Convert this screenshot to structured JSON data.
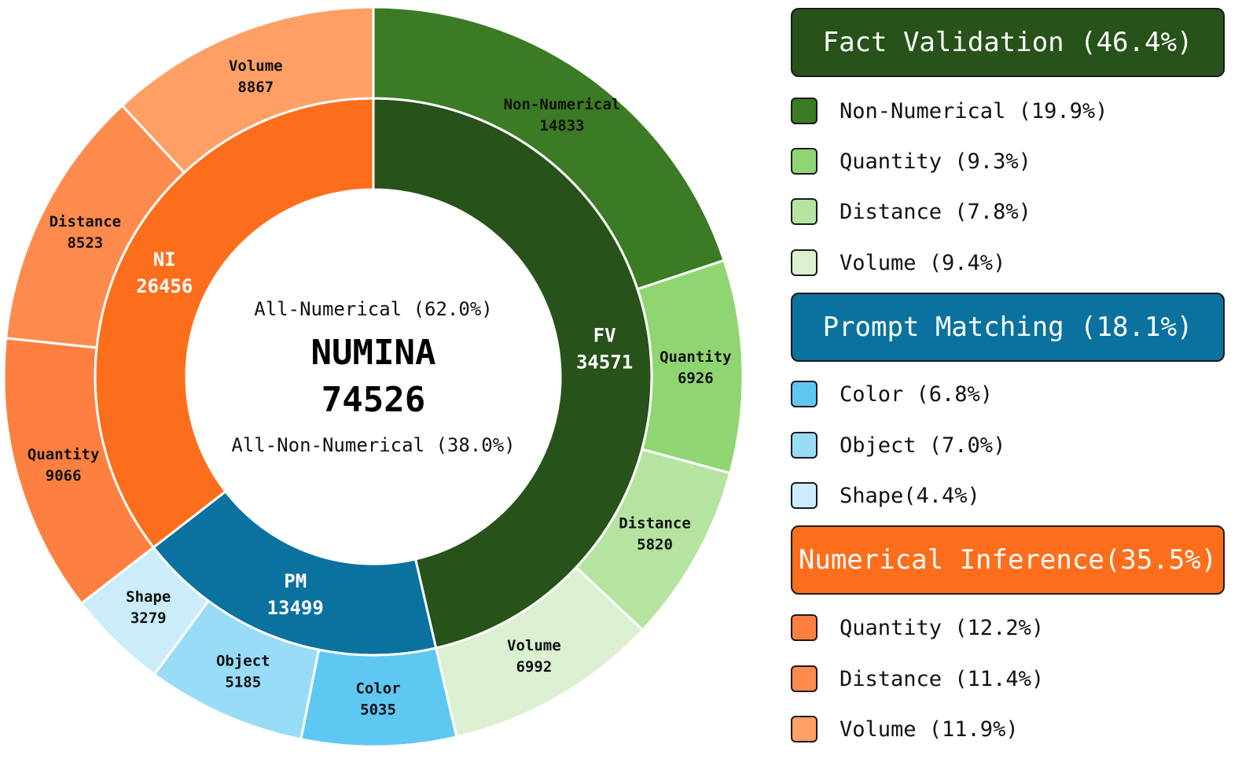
{
  "chart_data": {
    "type": "pie",
    "variant": "nested-donut",
    "title": "NUMINA",
    "total": "74526",
    "center_lines": [
      "All-Numerical (62.0%)",
      "All-Non-Numerical (38.0%)"
    ],
    "inner_ring": [
      {
        "label": "FV",
        "value": 34571,
        "color": "#27521a"
      },
      {
        "label": "PM",
        "value": 13499,
        "color": "#0b729f"
      },
      {
        "label": "NI",
        "value": 26456,
        "color": "#fd6e1c"
      }
    ],
    "outer_ring": [
      {
        "group": "FV",
        "label": "Non-Numerical",
        "value": 14833,
        "color": "#3b7b23"
      },
      {
        "group": "FV",
        "label": "Quantity",
        "value": 6926,
        "color": "#8fd673"
      },
      {
        "group": "FV",
        "label": "Distance",
        "value": 5820,
        "color": "#b4e4a0"
      },
      {
        "group": "FV",
        "label": "Volume",
        "value": 6992,
        "color": "#daf0d1"
      },
      {
        "group": "PM",
        "label": "Color",
        "value": 5035,
        "color": "#5ec8f3"
      },
      {
        "group": "PM",
        "label": "Object",
        "value": 5185,
        "color": "#98dcf7"
      },
      {
        "group": "PM",
        "label": "Shape",
        "value": 3279,
        "color": "#cbecfa"
      },
      {
        "group": "NI",
        "label": "Quantity",
        "value": 9066,
        "color": "#fd8040"
      },
      {
        "group": "NI",
        "label": "Distance",
        "value": 8523,
        "color": "#fd8b4d"
      },
      {
        "group": "NI",
        "label": "Volume",
        "value": 8867,
        "color": "#fe9f66"
      }
    ]
  },
  "legend": {
    "groups": [
      {
        "title": "Fact Validation (46.4%)",
        "color": "#27521a",
        "items": [
          {
            "label": "Non-Numerical (19.9%)",
            "color": "#3b7b23"
          },
          {
            "label": "Quantity (9.3%)",
            "color": "#8fd673"
          },
          {
            "label": "Distance (7.8%)",
            "color": "#b4e4a0"
          },
          {
            "label": "Volume (9.4%)",
            "color": "#daf0d1"
          }
        ]
      },
      {
        "title": "Prompt Matching (18.1%)",
        "color": "#0b729f",
        "items": [
          {
            "label": "Color (6.8%)",
            "color": "#5ec8f3"
          },
          {
            "label": "Object (7.0%)",
            "color": "#98dcf7"
          },
          {
            "label": "Shape(4.4%)",
            "color": "#cbecfa"
          }
        ]
      },
      {
        "title": "Numerical Inference(35.5%)",
        "color": "#fd6e1c",
        "items": [
          {
            "label": "Quantity (12.2%)",
            "color": "#fd8040"
          },
          {
            "label": "Distance (11.4%)",
            "color": "#fd8b4d"
          },
          {
            "label": "Volume (11.9%)",
            "color": "#fe9f66"
          }
        ]
      }
    ]
  }
}
